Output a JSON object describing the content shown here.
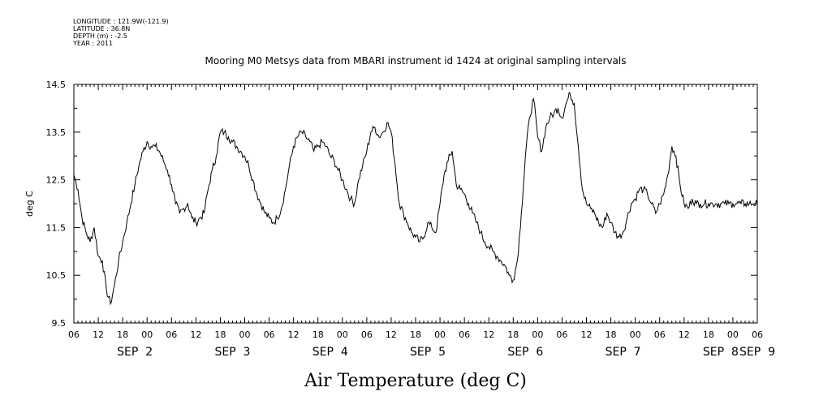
{
  "meta": {
    "longitude": "LONGITUDE : 121.9W(-121.9)",
    "latitude": "LATITUDE : 36.8N",
    "depth": "DEPTH (m) : -2.5",
    "year": "YEAR : 2011"
  },
  "chart_data": {
    "type": "line",
    "title": "Mooring M0 Metsys data from MBARI instrument id 1424 at original sampling intervals",
    "xlabel": "Air Temperature (deg C)",
    "ylabel": "deg C",
    "ylim": [
      9.5,
      14.5
    ],
    "yticks": [
      "9.5",
      "10.5",
      "11.5",
      "12.5",
      "13.5",
      "14.5"
    ],
    "xlim_hours": [
      0,
      168
    ],
    "hour_ticks": [
      "06",
      "12",
      "18",
      "00",
      "06",
      "12",
      "18",
      "00",
      "06",
      "12",
      "18",
      "00",
      "06",
      "12",
      "18",
      "00",
      "06",
      "12",
      "18",
      "00",
      "06",
      "12",
      "18",
      "00",
      "06",
      "12",
      "18",
      "00",
      "06"
    ],
    "day_labels": [
      {
        "label": "SEP  2",
        "hour": 15
      },
      {
        "label": "SEP  3",
        "hour": 39
      },
      {
        "label": "SEP  4",
        "hour": 63
      },
      {
        "label": "SEP  5",
        "hour": 87
      },
      {
        "label": "SEP  6",
        "hour": 111
      },
      {
        "label": "SEP  7",
        "hour": 135
      },
      {
        "label": "SEP  8",
        "hour": 159
      },
      {
        "label": "SEP  9",
        "hour": 168
      }
    ],
    "series": [
      {
        "name": "Air Temperature",
        "color": "#000000",
        "x": [
          0,
          1,
          2,
          3,
          4,
          5,
          6,
          7,
          8,
          9,
          10,
          11,
          12,
          13,
          14,
          15,
          16,
          17,
          18,
          19,
          20,
          21,
          22,
          23,
          24,
          25,
          26,
          27,
          28,
          29,
          30,
          31,
          32,
          33,
          34,
          35,
          36,
          37,
          38,
          39,
          40,
          41,
          42,
          43,
          44,
          45,
          46,
          47,
          48,
          49,
          50,
          51,
          52,
          53,
          54,
          55,
          56,
          57,
          58,
          59,
          60,
          61,
          62,
          63,
          64,
          65,
          66,
          67,
          68,
          69,
          70,
          71,
          72,
          73,
          74,
          75,
          76,
          77,
          78,
          79,
          80,
          81,
          82,
          83,
          84,
          85,
          86,
          87,
          88,
          89,
          90,
          91,
          92,
          93,
          94,
          95,
          96,
          97,
          98,
          99,
          100,
          101,
          102,
          103,
          104,
          105,
          106,
          107,
          108,
          109,
          110,
          111,
          112,
          113,
          114,
          115,
          116,
          117,
          118,
          119,
          120,
          121,
          122,
          123,
          124,
          125,
          126,
          127,
          128,
          129,
          130,
          131,
          132,
          133,
          134,
          135,
          136,
          137,
          138,
          139,
          140,
          141,
          142,
          143,
          144,
          145,
          146,
          147,
          148,
          149,
          150,
          151,
          152,
          153,
          154,
          155,
          156,
          157,
          158,
          159,
          160,
          161,
          162,
          163,
          164,
          165,
          166,
          167,
          168
        ],
        "values": [
          12.6,
          12.3,
          11.7,
          11.4,
          11.2,
          11.5,
          10.9,
          10.8,
          10.2,
          9.9,
          10.3,
          10.8,
          11.2,
          11.6,
          12.0,
          12.4,
          12.8,
          13.1,
          13.3,
          13.2,
          13.2,
          13.1,
          12.9,
          12.7,
          12.4,
          12.0,
          11.8,
          11.9,
          12.0,
          11.7,
          11.6,
          11.7,
          11.8,
          12.3,
          12.7,
          13.0,
          13.5,
          13.5,
          13.4,
          13.3,
          13.2,
          13.1,
          13.0,
          12.8,
          12.5,
          12.2,
          12.0,
          11.8,
          11.7,
          11.6,
          11.7,
          11.9,
          12.3,
          12.8,
          13.2,
          13.4,
          13.5,
          13.4,
          13.3,
          13.1,
          13.2,
          13.3,
          13.2,
          13.0,
          12.9,
          12.7,
          12.5,
          12.3,
          12.1,
          12.0,
          12.5,
          12.8,
          13.1,
          13.5,
          13.6,
          13.4,
          13.5,
          13.7,
          13.5,
          12.8,
          12.0,
          11.8,
          11.6,
          11.4,
          11.3,
          11.2,
          11.3,
          11.6,
          11.5,
          11.4,
          12.0,
          12.6,
          12.9,
          13.1,
          12.4,
          12.3,
          12.2,
          12.0,
          11.8,
          11.6,
          11.4,
          11.2,
          11.1,
          11.0,
          10.9,
          10.8,
          10.7,
          10.5,
          10.4,
          10.8,
          11.8,
          13.0,
          13.8,
          14.2,
          13.4,
          13.1,
          13.6,
          13.8,
          13.9,
          14.0,
          13.8,
          14.1,
          14.3,
          14.1,
          13.2,
          12.3,
          12.0,
          11.9,
          11.8,
          11.6,
          11.5,
          11.8,
          11.6,
          11.4,
          11.3,
          11.4,
          11.7,
          12.0,
          12.1,
          12.3,
          12.3,
          12.2,
          12.0,
          11.8,
          12.0,
          12.2,
          12.6,
          13.2,
          13.0,
          12.4,
          12.0,
          11.9,
          12.1,
          12.0,
          12.0,
          12.0,
          12.0,
          12.0,
          12.0,
          12.0,
          12.0,
          12.0,
          12.0,
          12.0,
          12.0,
          12.0,
          12.0,
          12.0,
          12.0
        ]
      }
    ]
  }
}
